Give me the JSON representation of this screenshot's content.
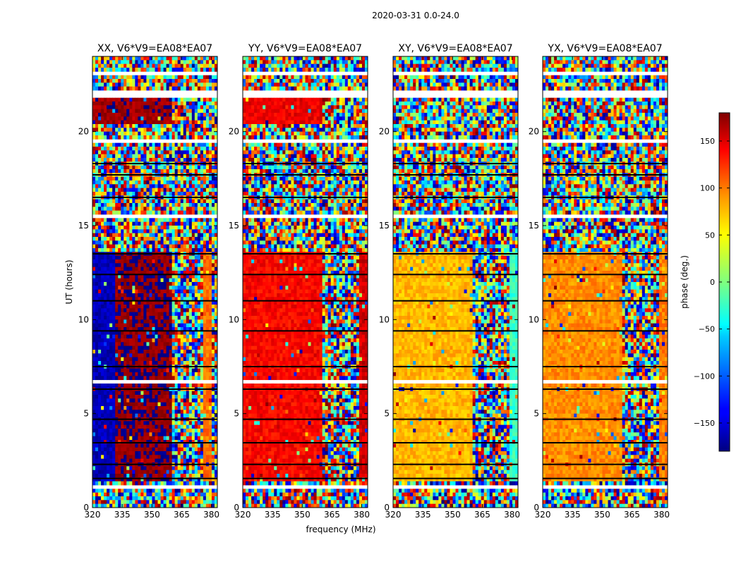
{
  "figure_title": "2020-03-31 0.0-24.0",
  "xlabel": "frequency (MHz)",
  "ylabel": "UT (hours)",
  "colorbar": {
    "label": "phase (deg.)",
    "range": [
      -180,
      180
    ],
    "ticks": [
      150,
      100,
      50,
      0,
      -50,
      -100,
      -150
    ],
    "tick_labels": [
      "150",
      "100",
      "50",
      "0",
      "−50",
      "−100",
      "−150"
    ]
  },
  "chart_data": [
    {
      "type": "heatmap",
      "title": "XX, V6*V9=EA08*EA07",
      "x_range": [
        320,
        383
      ],
      "y_range": [
        0,
        24
      ],
      "xticks": [
        320,
        335,
        350,
        365,
        380
      ],
      "yticks": [
        0,
        5,
        10,
        15,
        20
      ],
      "note": "phase vs frequency and UT; coherent phase ~ -160 deg (320-332 MHz) / ~ 175 deg (332-360 MHz) in 1.5-13.5 h and 20.5-22 h, noisy elsewhere; channels above ~360 MHz noisy",
      "regions": [
        {
          "ut": [
            1.5,
            13.5
          ],
          "freq": [
            320,
            332
          ],
          "phase": -160
        },
        {
          "ut": [
            1.5,
            13.5
          ],
          "freq": [
            332,
            360
          ],
          "phase": 175
        },
        {
          "ut": [
            1.5,
            13.5
          ],
          "freq": [
            376,
            380
          ],
          "phase": 95
        },
        {
          "ut": [
            20.5,
            22.0
          ],
          "freq": [
            320,
            360
          ],
          "phase": 170
        }
      ]
    },
    {
      "type": "heatmap",
      "title": "YY, V6*V9=EA08*EA07",
      "x_range": [
        320,
        383
      ],
      "y_range": [
        0,
        24
      ],
      "xticks": [
        320,
        335,
        350,
        365,
        380
      ],
      "yticks": [
        0,
        5,
        10,
        15,
        20
      ],
      "note": "coherent phase ~ 135 deg across 320-360 MHz in 1.5-13.5 h and 20.5-22 h",
      "regions": [
        {
          "ut": [
            1.5,
            13.5
          ],
          "freq": [
            320,
            360
          ],
          "phase": 135
        },
        {
          "ut": [
            1.5,
            13.5
          ],
          "freq": [
            379,
            383
          ],
          "phase": 150
        },
        {
          "ut": [
            20.5,
            22.0
          ],
          "freq": [
            320,
            360
          ],
          "phase": 140
        }
      ]
    },
    {
      "type": "heatmap",
      "title": "XY, V6*V9=EA08*EA07",
      "x_range": [
        320,
        383
      ],
      "y_range": [
        0,
        24
      ],
      "xticks": [
        320,
        335,
        350,
        365,
        380
      ],
      "yticks": [
        0,
        5,
        10,
        15,
        20
      ],
      "note": "coherent phase ~ 70 deg across 320-360 MHz in 1.5-13.5 h",
      "regions": [
        {
          "ut": [
            1.5,
            13.5
          ],
          "freq": [
            320,
            360
          ],
          "phase": 70
        },
        {
          "ut": [
            1.5,
            13.5
          ],
          "freq": [
            379,
            383
          ],
          "phase": -25
        }
      ]
    },
    {
      "type": "heatmap",
      "title": "YX, V6*V9=EA08*EA07",
      "x_range": [
        320,
        383
      ],
      "y_range": [
        0,
        24
      ],
      "xticks": [
        320,
        335,
        350,
        365,
        380
      ],
      "yticks": [
        0,
        5,
        10,
        15,
        20
      ],
      "note": "coherent phase ~ 85 deg across 320-360 MHz in 1.5-13.5 h",
      "regions": [
        {
          "ut": [
            1.5,
            13.5
          ],
          "freq": [
            320,
            360
          ],
          "phase": 85
        },
        {
          "ut": [
            1.5,
            13.5
          ],
          "freq": [
            379,
            383
          ],
          "phase": 90
        }
      ]
    }
  ]
}
